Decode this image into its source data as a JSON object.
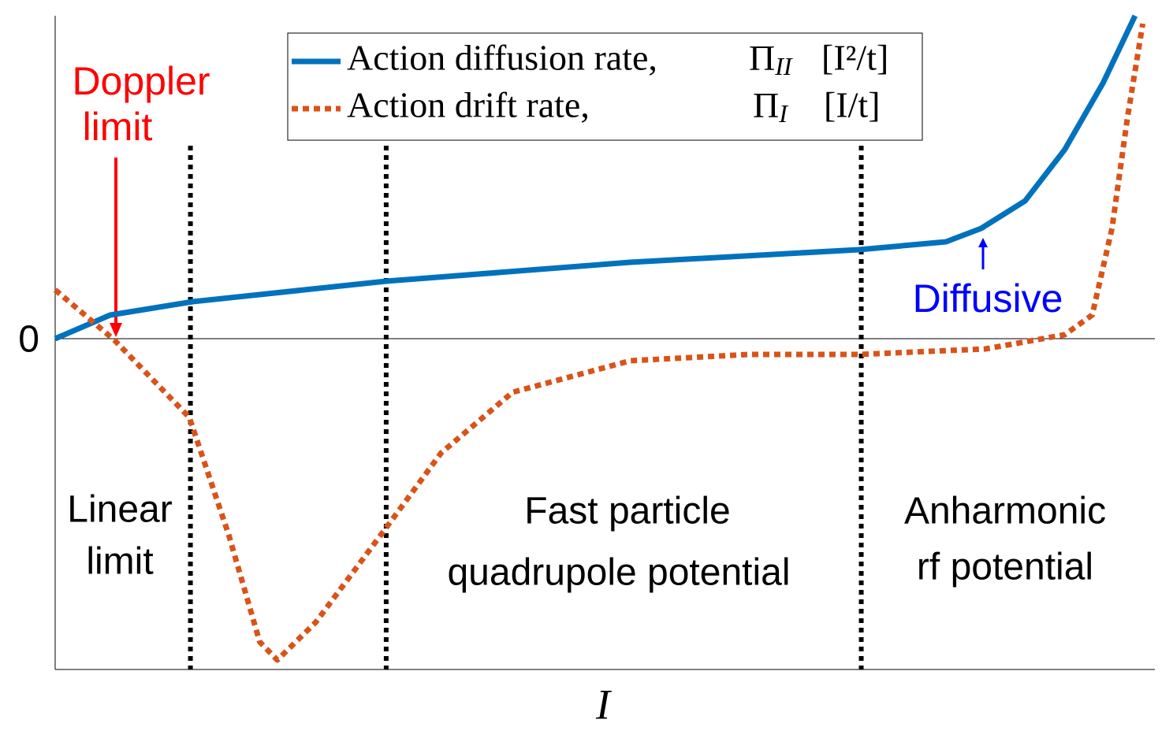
{
  "chart_data": {
    "type": "line",
    "xlabel": "I",
    "xlim": [
      0,
      100
    ],
    "ylim": [
      -42,
      41
    ],
    "yticks": [
      0
    ],
    "grid": true,
    "series": [
      {
        "name": "Action diffusion rate,",
        "symbol": "Π",
        "symbol_sub": "II",
        "unit": "[I²/t]",
        "color": "#0072bd",
        "style": "solid",
        "x": [
          0,
          5,
          12.5,
          30.1,
          52.3,
          73.1,
          81,
          84.2,
          88.2,
          91.8,
          95.3,
          98.2
        ],
        "values": [
          0,
          3,
          4.7,
          7.3,
          9.7,
          11.3,
          12.3,
          14,
          17.5,
          24,
          32.5,
          41
        ]
      },
      {
        "name": "Action drift rate,",
        "symbol": "Π",
        "symbol_sub": "I",
        "unit": "[I/t]",
        "color": "#d95319",
        "style": "dotted",
        "x": [
          0,
          5.4,
          12.2,
          15.8,
          18.6,
          20.2,
          23.7,
          30.1,
          35.1,
          41.6,
          52.3,
          63.1,
          73.1,
          84.6,
          91.8,
          94.3,
          96.1,
          97.5,
          98.9
        ],
        "values": [
          6.2,
          -0.2,
          -10,
          -25,
          -38.5,
          -40.8,
          -36,
          -24,
          -14.5,
          -6.8,
          -2.8,
          -2,
          -2,
          -1.3,
          0.5,
          3,
          14,
          28,
          40
        ]
      }
    ],
    "region_boundaries": [
      12.3,
      30.1,
      73.3
    ],
    "annotations": [
      {
        "lines": [
          "Doppler",
          "limit"
        ],
        "color": "#ff0000"
      },
      {
        "lines": [
          "Diffusive"
        ],
        "color": "#0000ff"
      },
      {
        "lines": [
          "Linear",
          "limit"
        ],
        "color": "#000000"
      },
      {
        "lines": [
          "Fast particle",
          "quadrupole potential"
        ],
        "color": "#000000"
      },
      {
        "lines": [
          "Anharmonic",
          "rf potential"
        ],
        "color": "#000000"
      }
    ]
  }
}
